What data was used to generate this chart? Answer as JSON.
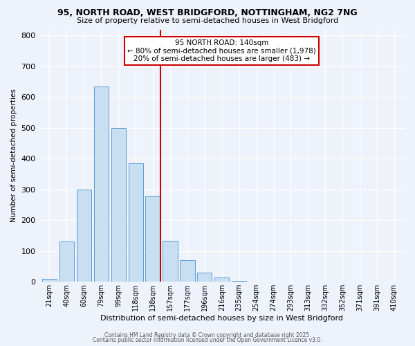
{
  "title1": "95, NORTH ROAD, WEST BRIDGFORD, NOTTINGHAM, NG2 7NG",
  "title2": "Size of property relative to semi-detached houses in West Bridgford",
  "xlabel": "Distribution of semi-detached houses by size in West Bridgford",
  "ylabel": "Number of semi-detached properties",
  "bar_labels": [
    "21sqm",
    "40sqm",
    "60sqm",
    "79sqm",
    "99sqm",
    "118sqm",
    "138sqm",
    "157sqm",
    "177sqm",
    "196sqm",
    "216sqm",
    "235sqm",
    "254sqm",
    "274sqm",
    "293sqm",
    "313sqm",
    "332sqm",
    "352sqm",
    "371sqm",
    "391sqm",
    "410sqm"
  ],
  "bar_values": [
    10,
    130,
    300,
    635,
    500,
    385,
    280,
    133,
    70,
    30,
    15,
    3,
    0,
    0,
    0,
    0,
    0,
    0,
    0,
    0,
    0
  ],
  "bar_color": "#c8dff2",
  "bar_edge_color": "#5b9bd5",
  "property_line_index": 6,
  "property_line_color": "#cc0000",
  "annotation_box_color": "#cc0000",
  "annotation_title": "95 NORTH ROAD: 140sqm",
  "annotation_line1": "← 80% of semi-detached houses are smaller (1,978)",
  "annotation_line2": "20% of semi-detached houses are larger (483) →",
  "ylim": [
    0,
    820
  ],
  "yticks": [
    0,
    100,
    200,
    300,
    400,
    500,
    600,
    700,
    800
  ],
  "background_color": "#eef2fb",
  "plot_bg_color": "#eef2fb",
  "footer1": "Contains HM Land Registry data © Crown copyright and database right 2025.",
  "footer2": "Contains public sector information licensed under the Open Government Licence v3.0."
}
